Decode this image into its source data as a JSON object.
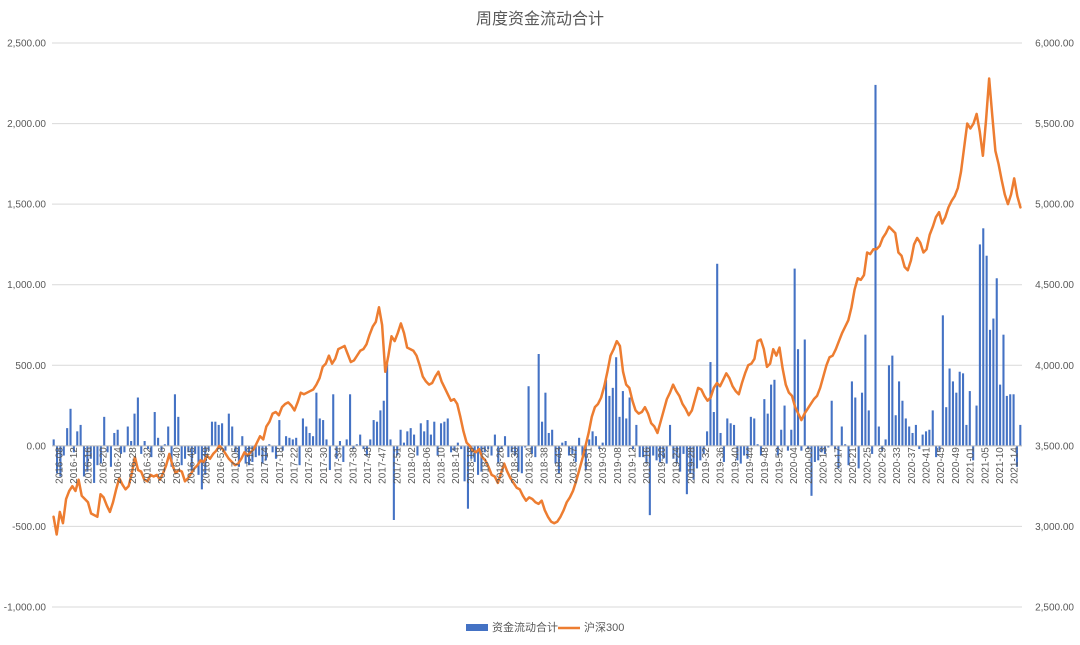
{
  "chart_data": {
    "type": "bar+line",
    "title": "周度资金流动合计",
    "legend_position": "bottom",
    "grid": true,
    "colors": {
      "bars": "#4472c4",
      "line": "#ed7d31",
      "grid": "#d9d9d9",
      "text": "#595959"
    },
    "y_left": {
      "range": [
        -1000,
        2500
      ],
      "ticks": [
        -1000,
        -500,
        0,
        500,
        1000,
        1500,
        2000,
        2500
      ],
      "tick_labels": [
        "-1,000.00",
        "-500.00",
        "0.00",
        "500.00",
        "1,000.00",
        "1,500.00",
        "2,000.00",
        "2,500.00"
      ]
    },
    "y_right": {
      "range": [
        2500,
        6000
      ],
      "ticks": [
        2500,
        3000,
        3500,
        4000,
        4500,
        5000,
        5500,
        6000
      ],
      "tick_labels": [
        "2,500.00",
        "3,000.00",
        "3,500.00",
        "4,000.00",
        "4,500.00",
        "5,000.00",
        "5,500.00",
        "6,000.00"
      ]
    },
    "x_labels": [
      "2016-08",
      "2016-12",
      "2016-16",
      "2016-20",
      "2016-24",
      "2016-28",
      "2016-32",
      "2016-36",
      "2016-40",
      "2016-45",
      "2016-49",
      "2016-53",
      "2017-05",
      "2017-10",
      "2017-14",
      "2017-18",
      "2017-22",
      "2017-26",
      "2017-30",
      "2017-34",
      "2017-38",
      "2017-43",
      "2017-47",
      "2017-51",
      "2018-02",
      "2018-06",
      "2018-10",
      "2018-14",
      "2018-18",
      "2018-22",
      "2018-26",
      "2018-30",
      "2018-34",
      "2018-38",
      "2018-43",
      "2018-47",
      "2018-51",
      "2019-03",
      "2019-08",
      "2019-12",
      "2019-16",
      "2019-20",
      "2019-24",
      "2019-28",
      "2019-32",
      "2019-36",
      "2019-40",
      "2019-44",
      "2019-48",
      "2019-52",
      "2020-04",
      "2020-09",
      "2020-13",
      "2020-17",
      "2020-21",
      "2020-25",
      "2020-29",
      "2020-33",
      "2020-37",
      "2020-41",
      "2020-45",
      "2020-49",
      "2021-01",
      "2021-05",
      "2021-10",
      "2021-14"
    ],
    "series": [
      {
        "name": "资金流动合计",
        "type": "bar",
        "axis": "left",
        "values": [
          40,
          -170,
          -190,
          -60,
          110,
          230,
          -40,
          90,
          130,
          -190,
          -160,
          -80,
          -230,
          -120,
          -110,
          180,
          -40,
          -130,
          80,
          100,
          -50,
          -40,
          120,
          30,
          200,
          300,
          -50,
          30,
          -20,
          -70,
          210,
          50,
          -30,
          10,
          120,
          -130,
          320,
          180,
          -120,
          -80,
          -40,
          -160,
          -50,
          -180,
          -270,
          -180,
          -30,
          150,
          150,
          130,
          140,
          -30,
          200,
          120,
          -40,
          -130,
          60,
          -110,
          -120,
          -100,
          -70,
          -60,
          -110,
          -90,
          10,
          -40,
          -80,
          160,
          -30,
          60,
          50,
          40,
          50,
          -120,
          170,
          120,
          80,
          60,
          330,
          170,
          160,
          40,
          -150,
          320,
          -80,
          30,
          -100,
          40,
          320,
          -20,
          10,
          70,
          -20,
          -60,
          40,
          160,
          150,
          220,
          280,
          510,
          40,
          -460,
          -60,
          100,
          20,
          90,
          110,
          70,
          -60,
          140,
          90,
          160,
          70,
          150,
          -60,
          140,
          150,
          170,
          -40,
          -30,
          20,
          -20,
          -220,
          -390,
          -80,
          -100,
          -180,
          -160,
          -40,
          -20,
          -60,
          70,
          -110,
          -20,
          60,
          -70,
          -40,
          -60,
          -160,
          -170,
          -10,
          370,
          -50,
          -70,
          570,
          150,
          330,
          80,
          100,
          -110,
          -170,
          20,
          30,
          -60,
          -50,
          -100,
          50,
          -60,
          -150,
          40,
          90,
          60,
          -20,
          20,
          410,
          310,
          360,
          550,
          180,
          340,
          170,
          300,
          -20,
          130,
          -70,
          -70,
          -110,
          -430,
          -60,
          -90,
          -100,
          -80,
          -110,
          130,
          -80,
          -110,
          -160,
          -50,
          -300,
          -170,
          -210,
          -140,
          -90,
          -50,
          90,
          520,
          210,
          1130,
          80,
          -100,
          170,
          140,
          130,
          -90,
          -110,
          -60,
          -80,
          180,
          170,
          10,
          -60,
          290,
          200,
          380,
          410,
          -60,
          100,
          250,
          -30,
          100,
          1100,
          600,
          -30,
          660,
          -20,
          -310,
          -100,
          -90,
          -40,
          -50,
          -10,
          280,
          -20,
          -140,
          120,
          10,
          -120,
          400,
          300,
          -140,
          330,
          690,
          220,
          -50,
          2240,
          120,
          -30,
          40,
          500,
          560,
          190,
          400,
          280,
          170,
          120,
          80,
          130,
          -20,
          70,
          90,
          100,
          220,
          -70,
          -30,
          810,
          240,
          480,
          400,
          330,
          460,
          450,
          130,
          340,
          -90,
          250,
          1250,
          1350,
          1180,
          720,
          790,
          1040,
          380,
          690,
          310,
          320,
          320,
          -130,
          130
        ]
      },
      {
        "name": "沪深300",
        "type": "line",
        "axis": "right",
        "values": [
          3060,
          2950,
          3090,
          3020,
          3170,
          3220,
          3250,
          3220,
          3290,
          3190,
          3170,
          3150,
          3080,
          3070,
          3060,
          3200,
          3180,
          3130,
          3090,
          3150,
          3230,
          3300,
          3260,
          3230,
          3250,
          3330,
          3430,
          3350,
          3340,
          3290,
          3280,
          3320,
          3310,
          3320,
          3290,
          3330,
          3380,
          3450,
          3380,
          3330,
          3350,
          3340,
          3280,
          3300,
          3330,
          3360,
          3380,
          3410,
          3400,
          3440,
          3420,
          3450,
          3470,
          3500,
          3480,
          3450,
          3420,
          3400,
          3380,
          3390,
          3420,
          3460,
          3440,
          3460,
          3480,
          3520,
          3560,
          3540,
          3620,
          3650,
          3700,
          3710,
          3690,
          3740,
          3760,
          3770,
          3750,
          3720,
          3770,
          3830,
          3820,
          3830,
          3840,
          3850,
          3880,
          3920,
          3990,
          4010,
          4060,
          4010,
          4040,
          4100,
          4110,
          4120,
          4070,
          4020,
          4030,
          4060,
          4090,
          4100,
          4130,
          4190,
          4240,
          4270,
          4360,
          4250,
          3960,
          4060,
          4180,
          4150,
          4200,
          4260,
          4200,
          4110,
          4100,
          4090,
          4060,
          4000,
          3930,
          3900,
          3880,
          3890,
          3930,
          3960,
          3900,
          3860,
          3820,
          3780,
          3790,
          3760,
          3680,
          3590,
          3520,
          3500,
          3470,
          3460,
          3480,
          3430,
          3410,
          3370,
          3320,
          3310,
          3270,
          3330,
          3390,
          3340,
          3300,
          3270,
          3240,
          3230,
          3190,
          3160,
          3180,
          3170,
          3150,
          3140,
          3160,
          3100,
          3060,
          3030,
          3020,
          3030,
          3060,
          3100,
          3150,
          3180,
          3220,
          3280,
          3350,
          3420,
          3500,
          3580,
          3680,
          3740,
          3760,
          3800,
          3870,
          3960,
          4060,
          4100,
          4150,
          4120,
          3960,
          3880,
          3860,
          3780,
          3720,
          3700,
          3710,
          3740,
          3700,
          3640,
          3620,
          3580,
          3650,
          3720,
          3790,
          3830,
          3880,
          3840,
          3810,
          3760,
          3730,
          3690,
          3720,
          3790,
          3860,
          3850,
          3810,
          3780,
          3800,
          3860,
          3890,
          3870,
          3910,
          3950,
          3920,
          3870,
          3840,
          3820,
          3890,
          3950,
          4000,
          4010,
          4040,
          4150,
          4160,
          4100,
          3990,
          4010,
          4100,
          4060,
          4110,
          3980,
          3880,
          3830,
          3810,
          3740,
          3700,
          3660,
          3700,
          3730,
          3760,
          3790,
          3810,
          3860,
          3930,
          4000,
          4050,
          4060,
          4100,
          4150,
          4200,
          4240,
          4280,
          4360,
          4470,
          4540,
          4530,
          4560,
          4700,
          4690,
          4720,
          4720,
          4740,
          4790,
          4820,
          4860,
          4840,
          4820,
          4700,
          4680,
          4610,
          4590,
          4650,
          4750,
          4790,
          4760,
          4700,
          4720,
          4810,
          4860,
          4920,
          4950,
          4880,
          4920,
          4980,
          5020,
          5050,
          5100,
          5200,
          5350,
          5500,
          5470,
          5500,
          5560,
          5450,
          5300,
          5520,
          5780,
          5550,
          5330,
          5250,
          5150,
          5060,
          5000,
          5060,
          5160,
          5050,
          4980
        ]
      }
    ]
  }
}
